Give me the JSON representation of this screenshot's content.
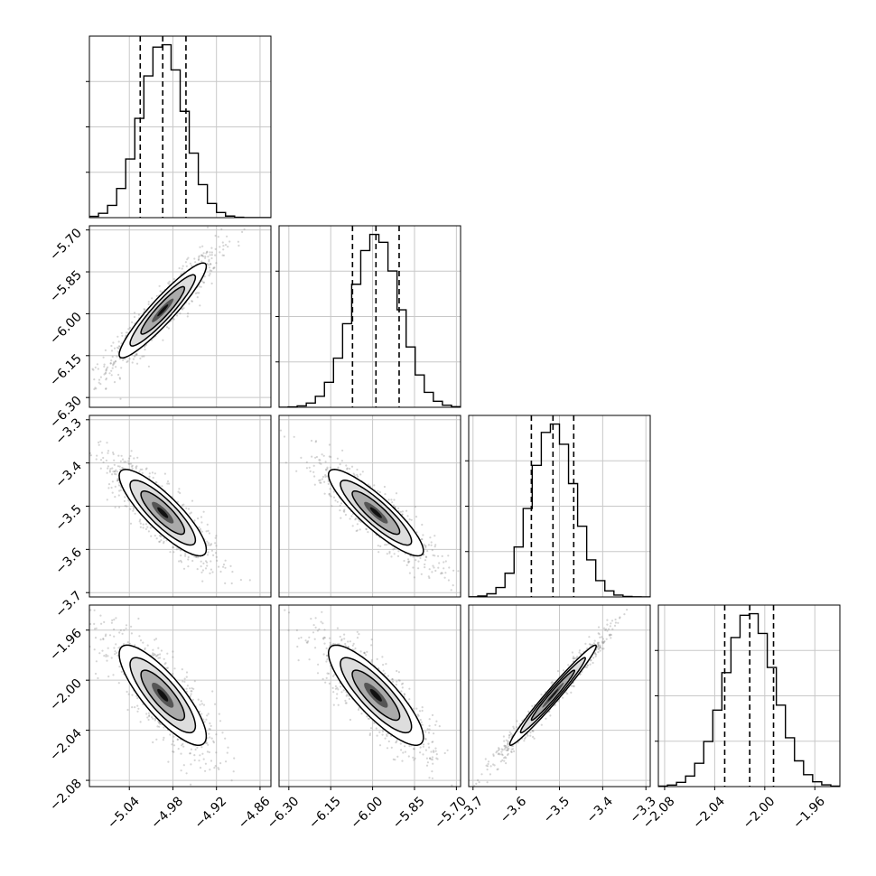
{
  "chart_data": {
    "type": "corner",
    "grid": true,
    "parameters": [
      {
        "range": [
          -5.095,
          -4.845
        ],
        "ticks": [
          -5.04,
          -4.98,
          -4.92,
          -4.86
        ],
        "tick_labels": [
          "−5.04",
          "−4.98",
          "−4.92",
          "−4.86"
        ],
        "quantiles": [
          -5.025,
          -4.994,
          -4.962
        ],
        "median": -4.994,
        "sigma": 0.03
      },
      {
        "range": [
          -6.335,
          -5.685
        ],
        "ticks": [
          -6.3,
          -6.15,
          -6.0,
          -5.85,
          -5.7
        ],
        "tick_labels": [
          "−6.30",
          "−6.15",
          "−6.00",
          "−5.85",
          "−5.70"
        ],
        "quantiles": [
          -6.072,
          -5.988,
          -5.905
        ],
        "median": -5.988,
        "sigma": 0.085
      },
      {
        "range": [
          -3.71,
          -3.29
        ],
        "ticks": [
          -3.7,
          -3.6,
          -3.5,
          -3.4,
          -3.3
        ],
        "tick_labels": [
          "−3.7",
          "−3.6",
          "−3.5",
          "−3.4",
          "−3.3"
        ],
        "quantiles": [
          -3.565,
          -3.515,
          -3.467
        ],
        "median": -3.515,
        "sigma": 0.05
      },
      {
        "range": [
          -2.085,
          -1.94
        ],
        "ticks": [
          -2.08,
          -2.04,
          -2.0,
          -1.96
        ],
        "tick_labels": [
          "−2.08",
          "−2.04",
          "−2.00",
          "−1.96"
        ],
        "quantiles": [
          -2.032,
          -2.012,
          -1.993
        ],
        "median": -2.012,
        "sigma": 0.02
      }
    ],
    "correlations": [
      [
        1,
        0.93,
        -0.85,
        -0.82
      ],
      [
        0.93,
        1,
        -0.88,
        -0.84
      ],
      [
        -0.85,
        -0.88,
        1,
        0.98
      ],
      [
        -0.82,
        -0.84,
        0.98,
        1
      ]
    ],
    "colors": {
      "line": "#000000",
      "points": "#888888",
      "grid": "#c8c8c8",
      "frame": "#000000"
    }
  }
}
